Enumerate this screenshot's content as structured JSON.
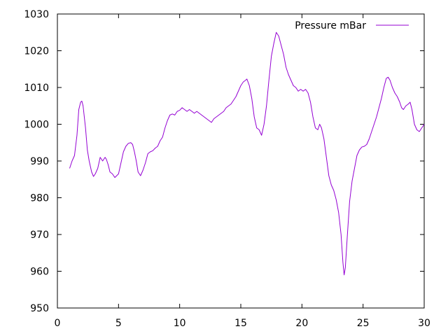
{
  "chart_data": {
    "type": "line",
    "title": "",
    "xlabel": "",
    "ylabel": "",
    "xlim": [
      0,
      30
    ],
    "ylim": [
      950,
      1030
    ],
    "x_ticks": [
      0,
      5,
      10,
      15,
      20,
      25,
      30
    ],
    "y_ticks": [
      950,
      960,
      970,
      980,
      990,
      1000,
      1010,
      1020,
      1030
    ],
    "grid": false,
    "legend_position": "top-right",
    "series": [
      {
        "name": "Pressure mBar",
        "color": "#9400d3",
        "points": [
          [
            1.0,
            988.0
          ],
          [
            1.2,
            990.0
          ],
          [
            1.4,
            991.5
          ],
          [
            1.6,
            997.0
          ],
          [
            1.75,
            1004.0
          ],
          [
            1.9,
            1006.0
          ],
          [
            2.0,
            1006.3
          ],
          [
            2.1,
            1005.0
          ],
          [
            2.3,
            999.0
          ],
          [
            2.45,
            993.0
          ],
          [
            2.6,
            990.0
          ],
          [
            2.8,
            987.0
          ],
          [
            2.95,
            985.8
          ],
          [
            3.1,
            986.5
          ],
          [
            3.3,
            988.0
          ],
          [
            3.5,
            991.0
          ],
          [
            3.7,
            990.0
          ],
          [
            3.9,
            991.0
          ],
          [
            4.0,
            990.5
          ],
          [
            4.15,
            989.0
          ],
          [
            4.3,
            987.0
          ],
          [
            4.5,
            986.5
          ],
          [
            4.7,
            985.5
          ],
          [
            4.85,
            986.0
          ],
          [
            5.0,
            986.5
          ],
          [
            5.2,
            989.5
          ],
          [
            5.4,
            992.5
          ],
          [
            5.6,
            994.0
          ],
          [
            5.8,
            994.8
          ],
          [
            6.0,
            995.0
          ],
          [
            6.15,
            994.5
          ],
          [
            6.3,
            992.5
          ],
          [
            6.45,
            990.0
          ],
          [
            6.6,
            987.0
          ],
          [
            6.8,
            986.0
          ],
          [
            7.0,
            987.5
          ],
          [
            7.2,
            989.5
          ],
          [
            7.4,
            992.0
          ],
          [
            7.6,
            992.5
          ],
          [
            7.8,
            992.8
          ],
          [
            8.0,
            993.5
          ],
          [
            8.2,
            994.0
          ],
          [
            8.4,
            995.5
          ],
          [
            8.6,
            996.5
          ],
          [
            8.8,
            999.0
          ],
          [
            9.0,
            1001.0
          ],
          [
            9.2,
            1002.5
          ],
          [
            9.4,
            1002.8
          ],
          [
            9.6,
            1002.5
          ],
          [
            9.8,
            1003.5
          ],
          [
            10.0,
            1003.8
          ],
          [
            10.2,
            1004.5
          ],
          [
            10.4,
            1004.0
          ],
          [
            10.6,
            1003.5
          ],
          [
            10.8,
            1004.0
          ],
          [
            11.0,
            1003.5
          ],
          [
            11.2,
            1003.0
          ],
          [
            11.4,
            1003.5
          ],
          [
            11.6,
            1003.0
          ],
          [
            11.8,
            1002.5
          ],
          [
            12.0,
            1002.0
          ],
          [
            12.2,
            1001.5
          ],
          [
            12.4,
            1001.0
          ],
          [
            12.6,
            1000.5
          ],
          [
            12.8,
            1001.5
          ],
          [
            13.0,
            1002.0
          ],
          [
            13.2,
            1002.5
          ],
          [
            13.4,
            1003.0
          ],
          [
            13.6,
            1003.5
          ],
          [
            13.8,
            1004.5
          ],
          [
            14.0,
            1005.0
          ],
          [
            14.2,
            1005.5
          ],
          [
            14.4,
            1006.5
          ],
          [
            14.6,
            1007.5
          ],
          [
            14.8,
            1009.0
          ],
          [
            15.0,
            1010.5
          ],
          [
            15.2,
            1011.5
          ],
          [
            15.4,
            1012.0
          ],
          [
            15.5,
            1012.3
          ],
          [
            15.7,
            1010.5
          ],
          [
            15.9,
            1007.0
          ],
          [
            16.1,
            1002.0
          ],
          [
            16.3,
            999.0
          ],
          [
            16.5,
            998.5
          ],
          [
            16.7,
            997.0
          ],
          [
            16.9,
            1000.0
          ],
          [
            17.1,
            1005.0
          ],
          [
            17.3,
            1012.0
          ],
          [
            17.5,
            1018.5
          ],
          [
            17.7,
            1022.0
          ],
          [
            17.9,
            1025.0
          ],
          [
            18.1,
            1024.0
          ],
          [
            18.3,
            1021.5
          ],
          [
            18.5,
            1019.0
          ],
          [
            18.7,
            1015.5
          ],
          [
            18.9,
            1013.5
          ],
          [
            19.1,
            1012.0
          ],
          [
            19.3,
            1010.5
          ],
          [
            19.5,
            1010.0
          ],
          [
            19.7,
            1009.0
          ],
          [
            19.9,
            1009.5
          ],
          [
            20.1,
            1009.0
          ],
          [
            20.3,
            1009.5
          ],
          [
            20.5,
            1008.5
          ],
          [
            20.7,
            1006.0
          ],
          [
            20.9,
            1002.0
          ],
          [
            21.1,
            999.0
          ],
          [
            21.3,
            998.5
          ],
          [
            21.45,
            1000.0
          ],
          [
            21.6,
            999.0
          ],
          [
            21.8,
            996.0
          ],
          [
            22.0,
            991.0
          ],
          [
            22.2,
            986.0
          ],
          [
            22.4,
            983.5
          ],
          [
            22.6,
            982.0
          ],
          [
            22.8,
            979.5
          ],
          [
            23.0,
            976.0
          ],
          [
            23.2,
            970.0
          ],
          [
            23.35,
            962.5
          ],
          [
            23.45,
            959.0
          ],
          [
            23.55,
            961.0
          ],
          [
            23.7,
            969.0
          ],
          [
            23.9,
            979.0
          ],
          [
            24.1,
            984.5
          ],
          [
            24.3,
            988.0
          ],
          [
            24.5,
            991.5
          ],
          [
            24.7,
            993.0
          ],
          [
            24.9,
            993.8
          ],
          [
            25.1,
            994.0
          ],
          [
            25.3,
            994.5
          ],
          [
            25.5,
            996.0
          ],
          [
            25.7,
            998.0
          ],
          [
            25.9,
            1000.0
          ],
          [
            26.1,
            1002.0
          ],
          [
            26.3,
            1004.5
          ],
          [
            26.5,
            1007.0
          ],
          [
            26.7,
            1010.0
          ],
          [
            26.9,
            1012.5
          ],
          [
            27.05,
            1012.8
          ],
          [
            27.2,
            1012.0
          ],
          [
            27.4,
            1010.0
          ],
          [
            27.6,
            1008.5
          ],
          [
            27.8,
            1007.5
          ],
          [
            28.0,
            1006.0
          ],
          [
            28.15,
            1004.5
          ],
          [
            28.3,
            1004.0
          ],
          [
            28.5,
            1005.0
          ],
          [
            28.7,
            1005.5
          ],
          [
            28.85,
            1006.0
          ],
          [
            29.0,
            1004.0
          ],
          [
            29.2,
            1000.0
          ],
          [
            29.4,
            998.5
          ],
          [
            29.6,
            998.0
          ],
          [
            29.8,
            999.0
          ],
          [
            30.0,
            1000.0
          ]
        ]
      }
    ]
  }
}
